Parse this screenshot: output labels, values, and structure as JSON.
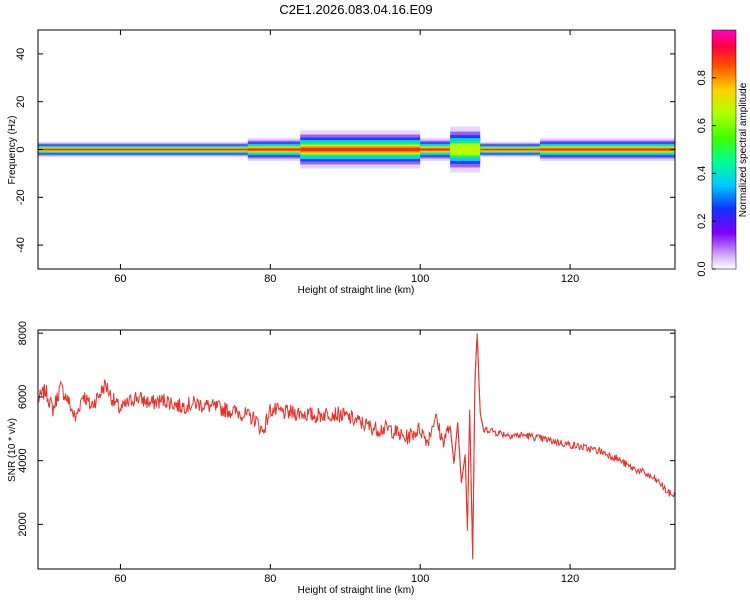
{
  "chart_data": [
    {
      "type": "heatmap",
      "title": "C2E1.2026.083.04.16.E09",
      "xlabel": "Height of straight line (km)",
      "ylabel": "Frequency (Hz)",
      "xlim": [
        49,
        134
      ],
      "ylim": [
        -50,
        50
      ],
      "x_ticks": [
        "60",
        "80",
        "100",
        "120"
      ],
      "y_ticks": [
        "40",
        "20",
        "0",
        "-20",
        "-40"
      ],
      "grid": false,
      "colorbar": {
        "label": "Normalized spectral amplitude",
        "range": [
          0,
          1
        ],
        "ticks": [
          "0.0",
          "0.2",
          "0.4",
          "0.6",
          "0.8"
        ]
      },
      "band": {
        "center_hz": 0,
        "segments": [
          {
            "x0": 49,
            "x1": 77,
            "halfwidth_hz": 2,
            "level": 0.95
          },
          {
            "x0": 77,
            "x1": 84,
            "halfwidth_hz": 3,
            "level": 0.9
          },
          {
            "x0": 84,
            "x1": 100,
            "halfwidth_hz": 5,
            "level": 0.75
          },
          {
            "x0": 100,
            "x1": 104,
            "halfwidth_hz": 3,
            "level": 0.9
          },
          {
            "x0": 104,
            "x1": 108,
            "halfwidth_hz": 6,
            "level": 0.5
          },
          {
            "x0": 108,
            "x1": 116,
            "halfwidth_hz": 2,
            "level": 0.95
          },
          {
            "x0": 116,
            "x1": 134,
            "halfwidth_hz": 3,
            "level": 0.85
          }
        ]
      }
    },
    {
      "type": "line",
      "xlabel": "Height of straight line (km)",
      "ylabel": "SNR (10 * v/v)",
      "xlim": [
        49,
        134
      ],
      "ylim": [
        600,
        8100
      ],
      "x_ticks": [
        "60",
        "80",
        "100",
        "120"
      ],
      "y_ticks": [
        "8000",
        "6000",
        "4000",
        "2000"
      ],
      "grid": false,
      "color": "#e8332a",
      "series": [
        {
          "x": [
            49,
            50,
            51,
            52,
            53,
            54,
            55,
            56,
            57,
            58,
            59,
            60,
            62,
            64,
            66,
            68,
            70,
            72,
            74,
            76,
            78,
            79,
            80,
            82,
            84,
            86,
            88,
            90,
            92,
            94,
            96,
            98,
            100,
            101,
            102,
            103,
            104,
            104.5,
            105,
            105.5,
            106,
            106.3,
            106.6,
            107,
            107.3,
            107.6,
            108,
            108.5,
            109,
            110,
            112,
            114,
            116,
            118,
            120,
            122,
            124,
            126,
            128,
            130,
            132,
            133,
            134
          ],
          "y": [
            5900,
            6200,
            5600,
            6300,
            5900,
            5300,
            6100,
            5700,
            6000,
            6400,
            5900,
            5600,
            6000,
            5800,
            5900,
            5700,
            5800,
            5700,
            5600,
            5500,
            5300,
            4900,
            5600,
            5500,
            5500,
            5400,
            5500,
            5400,
            5200,
            5000,
            5000,
            4700,
            5000,
            4600,
            5400,
            4600,
            5100,
            3900,
            5200,
            3300,
            4200,
            1800,
            5600,
            900,
            6500,
            8000,
            5500,
            4900,
            5000,
            4900,
            4800,
            4800,
            4700,
            4600,
            4500,
            4400,
            4300,
            4100,
            3800,
            3600,
            3300,
            3000,
            2900
          ]
        }
      ]
    }
  ]
}
